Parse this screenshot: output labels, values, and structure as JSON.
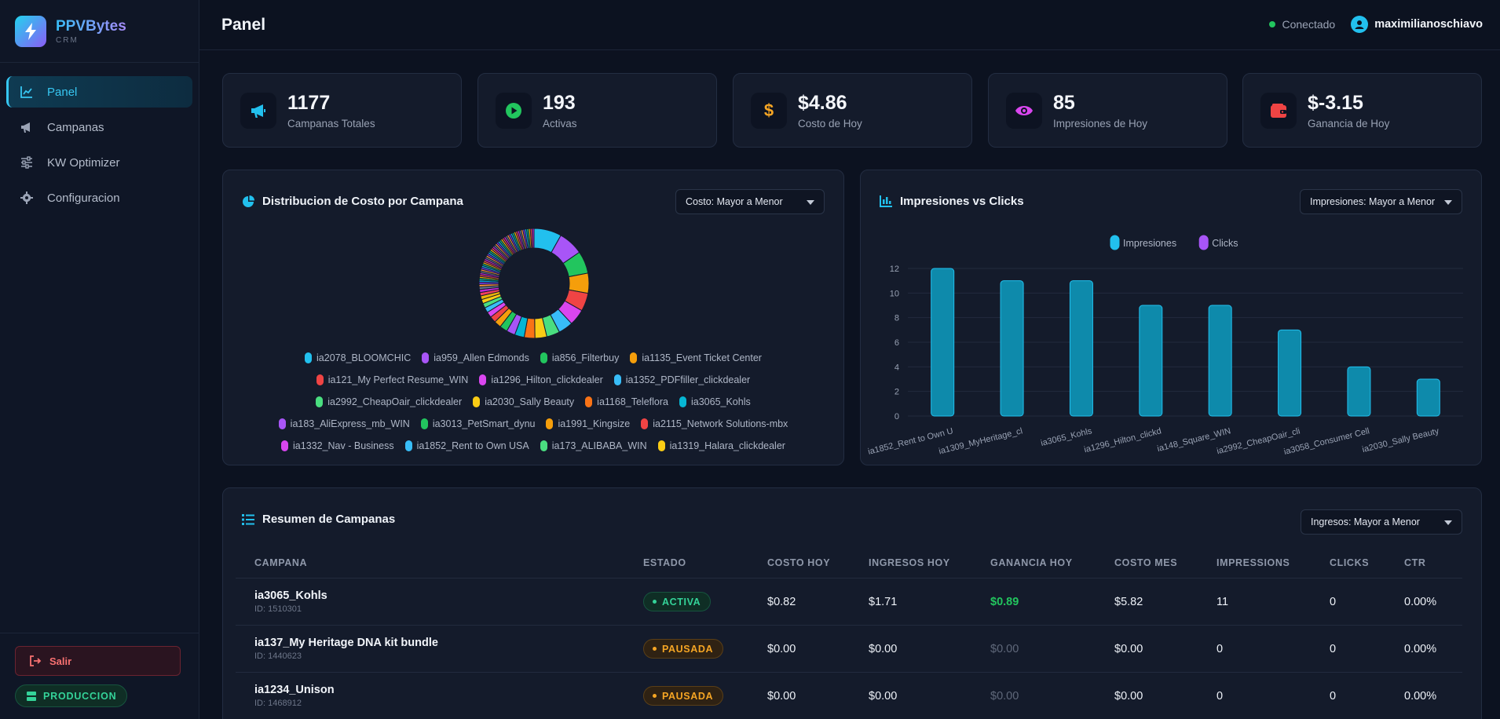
{
  "brand": {
    "title": "PPVBytes",
    "subtitle": "CRM"
  },
  "sidebar": {
    "items": [
      {
        "label": "Panel",
        "icon": "chart-line-icon"
      },
      {
        "label": "Campanas",
        "icon": "megaphone-icon"
      },
      {
        "label": "KW Optimizer",
        "icon": "sliders-icon"
      },
      {
        "label": "Configuracion",
        "icon": "gear-icon"
      }
    ],
    "logout_label": "Salir",
    "env_label": "PRODUCCION"
  },
  "header": {
    "title": "Panel",
    "connection_status": "Conectado",
    "username": "maximilianoschiavo"
  },
  "stats": [
    {
      "value": "1177",
      "label": "Campanas Totales",
      "icon": "megaphone-icon",
      "color": "#22c0ee"
    },
    {
      "value": "193",
      "label": "Activas",
      "icon": "play-icon",
      "color": "#22c55e"
    },
    {
      "value": "$4.86",
      "label": "Costo de Hoy",
      "icon": "dollar-icon",
      "color": "#f5a524"
    },
    {
      "value": "85",
      "label": "Impresiones de Hoy",
      "icon": "eye-icon",
      "color": "#d946ef"
    },
    {
      "value": "$-3.15",
      "label": "Ganancia de Hoy",
      "icon": "wallet-icon",
      "color": "#ef4444"
    }
  ],
  "cost_panel": {
    "title": "Distribucion de Costo por Campana",
    "sort_select": "Costo: Mayor a Menor"
  },
  "bar_panel": {
    "title": "Impresiones vs Clicks",
    "sort_select": "Impresiones: Mayor a Menor"
  },
  "chart_data": [
    {
      "type": "pie",
      "title": "Distribucion de Costo por Campana",
      "labels": [
        "ia2078_BLOOMCHIC",
        "ia959_Allen Edmonds",
        "ia856_Filterbuy",
        "ia1135_Event Ticket Center",
        "ia121_My Perfect Resume_WIN",
        "ia1296_Hilton_clickdealer",
        "ia1352_PDFfiller_clickdealer",
        "ia2992_CheapOair_clickdealer",
        "ia2030_Sally Beauty",
        "ia1168_Teleflora",
        "ia3065_Kohls",
        "ia183_AliExpress_mb_WIN",
        "ia3013_PetSmart_dynu",
        "ia1991_Kingsize",
        "ia2115_Network Solutions-mbx",
        "ia1332_Nav - Business",
        "ia1852_Rent to Own USA",
        "ia173_ALIBABA_WIN",
        "ia1319_Halara_clickdealer"
      ],
      "colors": [
        "#22c0ee",
        "#a855f7",
        "#22c55e",
        "#f59e0b",
        "#ef4444",
        "#d946ef",
        "#38bdf8",
        "#4ade80",
        "#facc15",
        "#f97316",
        "#06b6d4",
        "#a855f7",
        "#22c55e",
        "#f59e0b",
        "#ef4444",
        "#d946ef",
        "#38bdf8",
        "#4ade80",
        "#facc15"
      ],
      "segment_count": 70,
      "legend": "bottom"
    },
    {
      "type": "bar",
      "title": "Impresiones vs Clicks",
      "categories": [
        "ia1852_Rent to Own U",
        "ia1309_MyHeritage_cl",
        "ia3065_Kohls",
        "ia1296_Hilton_clickd",
        "ia148_Square_WIN",
        "ia2992_CheapOair_cli",
        "ia3058_Consumer Cell",
        "ia2030_Sally Beauty"
      ],
      "series": [
        {
          "name": "Impresiones",
          "values": [
            12,
            11,
            11,
            9,
            9,
            7,
            4,
            3
          ],
          "color": "#22c0ee"
        },
        {
          "name": "Clicks",
          "values": [
            0,
            0,
            0,
            0,
            0,
            0,
            0,
            0
          ],
          "color": "#a855f7"
        }
      ],
      "yticks": [
        "0",
        "2",
        "4",
        "6",
        "8",
        "10",
        "12"
      ],
      "ylim": [
        0,
        12
      ],
      "legend": "top"
    }
  ],
  "summary": {
    "title": "Resumen de Campanas",
    "sort_select": "Ingresos: Mayor a Menor",
    "columns": [
      "CAMPANA",
      "ESTADO",
      "COSTO HOY",
      "INGRESOS HOY",
      "GANANCIA HOY",
      "COSTO MES",
      "IMPRESSIONS",
      "CLICKS",
      "CTR"
    ],
    "rows": [
      {
        "name": "ia3065_Kohls",
        "id": "ID: 1510301",
        "status": "ACTIVA",
        "cost_today": "$0.82",
        "revenue_today": "$1.71",
        "profit_today": "$0.89",
        "cost_month": "$5.82",
        "impressions": "11",
        "clicks": "0",
        "ctr": "0.00%"
      },
      {
        "name": "ia137_My Heritage DNA kit bundle",
        "id": "ID: 1440623",
        "status": "PAUSADA",
        "cost_today": "$0.00",
        "revenue_today": "$0.00",
        "profit_today": "$0.00",
        "cost_month": "$0.00",
        "impressions": "0",
        "clicks": "0",
        "ctr": "0.00%"
      },
      {
        "name": "ia1234_Unison",
        "id": "ID: 1468912",
        "status": "PAUSADA",
        "cost_today": "$0.00",
        "revenue_today": "$0.00",
        "profit_today": "$0.00",
        "cost_month": "$0.00",
        "impressions": "0",
        "clicks": "0",
        "ctr": "0.00%"
      }
    ]
  }
}
